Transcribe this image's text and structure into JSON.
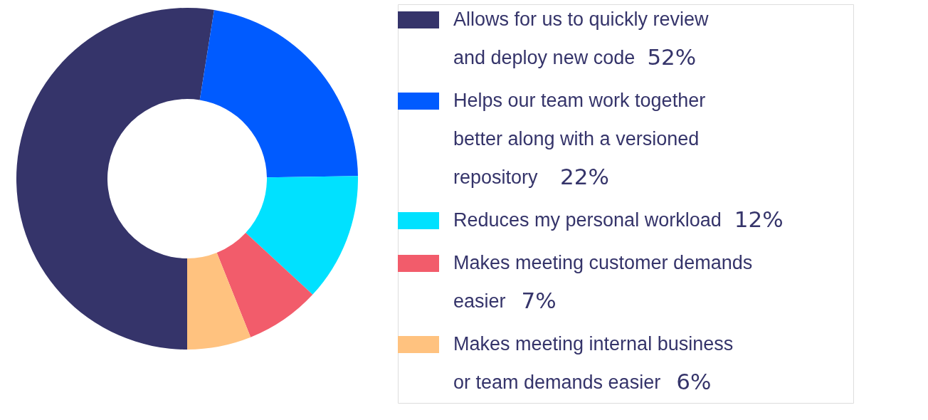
{
  "chart_data": {
    "type": "donut",
    "categories": [
      "Allows for us to quickly review and deploy new code",
      "Helps our team work together better along with a versioned repository",
      "Reduces my personal workload",
      "Makes meeting customer demands easier",
      "Makes meeting internal business or team demands easier"
    ],
    "values": [
      52,
      22,
      12,
      7,
      6
    ],
    "value_labels": [
      "52%",
      "22%",
      "12%",
      "7%",
      "6%"
    ],
    "colors": [
      "#35346a",
      "#005bff",
      "#00e1ff",
      "#f25c6b",
      "#ffc27f"
    ],
    "legend": "right"
  }
}
